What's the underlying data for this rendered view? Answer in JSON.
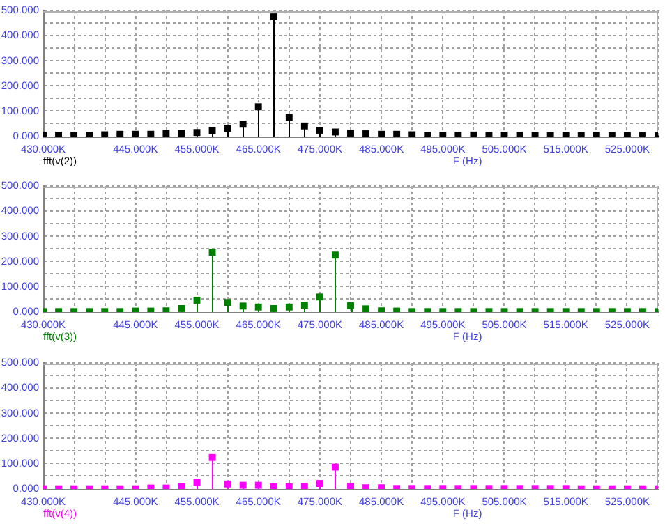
{
  "chart_data": [
    {
      "type": "lollipop",
      "xlabel": "F (Hz)",
      "marker": "square",
      "grid": true,
      "legend": "bottom left",
      "x": [
        430000,
        432500,
        435000,
        437500,
        440000,
        442500,
        445000,
        447500,
        450000,
        452500,
        455000,
        457500,
        460000,
        462500,
        465000,
        467500,
        470000,
        472500,
        475000,
        477500,
        480000,
        482500,
        485000,
        487500,
        490000,
        492500,
        495000,
        497500,
        500000,
        502500,
        505000,
        507500,
        510000,
        512500,
        515000,
        517500,
        520000,
        522500,
        525000,
        527500,
        530000
      ],
      "xlim": [
        430000,
        530000
      ],
      "xticks": [
        {
          "value": 430000,
          "label": "430.000K"
        },
        {
          "value": 435000,
          "label": null
        },
        {
          "value": 440000,
          "label": null
        },
        {
          "value": 445000,
          "label": "445.000K"
        },
        {
          "value": 450000,
          "label": null
        },
        {
          "value": 455000,
          "label": "455.000K"
        },
        {
          "value": 460000,
          "label": null
        },
        {
          "value": 465000,
          "label": "465.000K"
        },
        {
          "value": 470000,
          "label": null
        },
        {
          "value": 475000,
          "label": "475.000K"
        },
        {
          "value": 480000,
          "label": null
        },
        {
          "value": 485000,
          "label": "485.000K"
        },
        {
          "value": 490000,
          "label": null
        },
        {
          "value": 495000,
          "label": "495.000K"
        },
        {
          "value": 500000,
          "label": null
        },
        {
          "value": 505000,
          "label": "505.000K"
        },
        {
          "value": 510000,
          "label": null
        },
        {
          "value": 515000,
          "label": "515.000K"
        },
        {
          "value": 520000,
          "label": null
        },
        {
          "value": 525000,
          "label": "525.000K"
        },
        {
          "value": 530000,
          "label": null
        }
      ],
      "ylim": [
        0,
        500
      ],
      "yticks": [
        {
          "value": 0,
          "label": "0.000"
        },
        {
          "value": 50,
          "label": null
        },
        {
          "value": 100,
          "label": "100.000"
        },
        {
          "value": 150,
          "label": null
        },
        {
          "value": 200,
          "label": "200.000"
        },
        {
          "value": 250,
          "label": null
        },
        {
          "value": 300,
          "label": "300.000"
        },
        {
          "value": 350,
          "label": null
        },
        {
          "value": 400,
          "label": "400.000"
        },
        {
          "value": 450,
          "label": null
        },
        {
          "value": 500,
          "label": "500.000"
        }
      ],
      "series": [
        {
          "name": "fft(v(2))",
          "color": "#000000",
          "values": [
            5,
            5,
            5,
            5,
            7,
            9,
            9,
            9,
            13,
            13,
            16,
            24,
            33,
            49,
            118,
            475,
            76,
            42,
            25,
            18,
            13,
            11,
            9,
            9,
            7,
            5,
            5,
            5,
            6,
            5,
            5,
            5,
            4,
            4,
            4,
            4,
            5,
            4,
            4,
            4,
            4
          ]
        }
      ]
    },
    {
      "type": "lollipop",
      "xlabel": "F (Hz)",
      "marker": "square",
      "grid": true,
      "legend": "bottom left",
      "x": [
        430000,
        432500,
        435000,
        437500,
        440000,
        442500,
        445000,
        447500,
        450000,
        452500,
        455000,
        457500,
        460000,
        462500,
        465000,
        467500,
        470000,
        472500,
        475000,
        477500,
        480000,
        482500,
        485000,
        487500,
        490000,
        492500,
        495000,
        497500,
        500000,
        502500,
        505000,
        507500,
        510000,
        512500,
        515000,
        517500,
        520000,
        522500,
        525000,
        527500,
        530000
      ],
      "xlim": [
        430000,
        530000
      ],
      "xticks": [
        {
          "value": 430000,
          "label": "430.000K"
        },
        {
          "value": 435000,
          "label": null
        },
        {
          "value": 440000,
          "label": null
        },
        {
          "value": 445000,
          "label": "445.000K"
        },
        {
          "value": 450000,
          "label": null
        },
        {
          "value": 455000,
          "label": "455.000K"
        },
        {
          "value": 460000,
          "label": null
        },
        {
          "value": 465000,
          "label": "465.000K"
        },
        {
          "value": 470000,
          "label": null
        },
        {
          "value": 475000,
          "label": "475.000K"
        },
        {
          "value": 480000,
          "label": null
        },
        {
          "value": 485000,
          "label": "485.000K"
        },
        {
          "value": 490000,
          "label": null
        },
        {
          "value": 495000,
          "label": "495.000K"
        },
        {
          "value": 500000,
          "label": null
        },
        {
          "value": 505000,
          "label": "505.000K"
        },
        {
          "value": 510000,
          "label": null
        },
        {
          "value": 515000,
          "label": "515.000K"
        },
        {
          "value": 520000,
          "label": null
        },
        {
          "value": 525000,
          "label": "525.000K"
        },
        {
          "value": 530000,
          "label": null
        }
      ],
      "ylim": [
        0,
        500
      ],
      "yticks": [
        {
          "value": 0,
          "label": "0.000"
        },
        {
          "value": 50,
          "label": null
        },
        {
          "value": 100,
          "label": "100.000"
        },
        {
          "value": 150,
          "label": null
        },
        {
          "value": 200,
          "label": "200.000"
        },
        {
          "value": 250,
          "label": null
        },
        {
          "value": 300,
          "label": "300.000"
        },
        {
          "value": 350,
          "label": null
        },
        {
          "value": 400,
          "label": "400.000"
        },
        {
          "value": 450,
          "label": null
        },
        {
          "value": 500,
          "label": "500.000"
        }
      ],
      "series": [
        {
          "name": "fft(v(3))",
          "color": "#008000",
          "values": [
            2,
            2,
            2,
            2,
            2,
            2,
            4,
            4,
            5,
            14,
            47,
            237,
            38,
            24,
            20,
            14,
            20,
            27,
            60,
            226,
            25,
            13,
            5,
            4,
            2,
            2,
            2,
            2,
            2,
            2,
            2,
            2,
            2,
            2,
            2,
            2,
            2,
            2,
            2,
            2,
            2
          ]
        }
      ]
    },
    {
      "type": "lollipop",
      "xlabel": "F (Hz)",
      "marker": "square",
      "grid": true,
      "legend": "bottom left",
      "x": [
        430000,
        432500,
        435000,
        437500,
        440000,
        442500,
        445000,
        447500,
        450000,
        452500,
        455000,
        457500,
        460000,
        462500,
        465000,
        467500,
        470000,
        472500,
        475000,
        477500,
        480000,
        482500,
        485000,
        487500,
        490000,
        492500,
        495000,
        497500,
        500000,
        502500,
        505000,
        507500,
        510000,
        512500,
        515000,
        517500,
        520000,
        522500,
        525000,
        527500,
        530000
      ],
      "xlim": [
        430000,
        530000
      ],
      "xticks": [
        {
          "value": 430000,
          "label": "430.000K"
        },
        {
          "value": 435000,
          "label": null
        },
        {
          "value": 440000,
          "label": null
        },
        {
          "value": 445000,
          "label": "445.000K"
        },
        {
          "value": 450000,
          "label": null
        },
        {
          "value": 455000,
          "label": "455.000K"
        },
        {
          "value": 460000,
          "label": null
        },
        {
          "value": 465000,
          "label": "465.000K"
        },
        {
          "value": 470000,
          "label": null
        },
        {
          "value": 475000,
          "label": "475.000K"
        },
        {
          "value": 480000,
          "label": null
        },
        {
          "value": 485000,
          "label": "485.000K"
        },
        {
          "value": 490000,
          "label": null
        },
        {
          "value": 495000,
          "label": "495.000K"
        },
        {
          "value": 500000,
          "label": null
        },
        {
          "value": 505000,
          "label": "505.000K"
        },
        {
          "value": 510000,
          "label": null
        },
        {
          "value": 515000,
          "label": "515.000K"
        },
        {
          "value": 520000,
          "label": null
        },
        {
          "value": 525000,
          "label": "525.000K"
        },
        {
          "value": 530000,
          "label": null
        }
      ],
      "ylim": [
        0,
        500
      ],
      "yticks": [
        {
          "value": 0,
          "label": "0.000"
        },
        {
          "value": 50,
          "label": null
        },
        {
          "value": 100,
          "label": "100.000"
        },
        {
          "value": 150,
          "label": null
        },
        {
          "value": 200,
          "label": "200.000"
        },
        {
          "value": 250,
          "label": null
        },
        {
          "value": 300,
          "label": "300.000"
        },
        {
          "value": 350,
          "label": null
        },
        {
          "value": 400,
          "label": "400.000"
        },
        {
          "value": 450,
          "label": null
        },
        {
          "value": 500,
          "label": "500.000"
        }
      ],
      "series": [
        {
          "name": "fft(v(4))",
          "color": "#ff00ff",
          "values": [
            1,
            1,
            1,
            1,
            1,
            1,
            1,
            4,
            4,
            9,
            25,
            125,
            20,
            15,
            15,
            9,
            9,
            11,
            22,
            87,
            11,
            5,
            5,
            2,
            2,
            2,
            2,
            2,
            2,
            2,
            2,
            2,
            2,
            2,
            2,
            1,
            1,
            1,
            1,
            1,
            1
          ]
        }
      ]
    }
  ]
}
